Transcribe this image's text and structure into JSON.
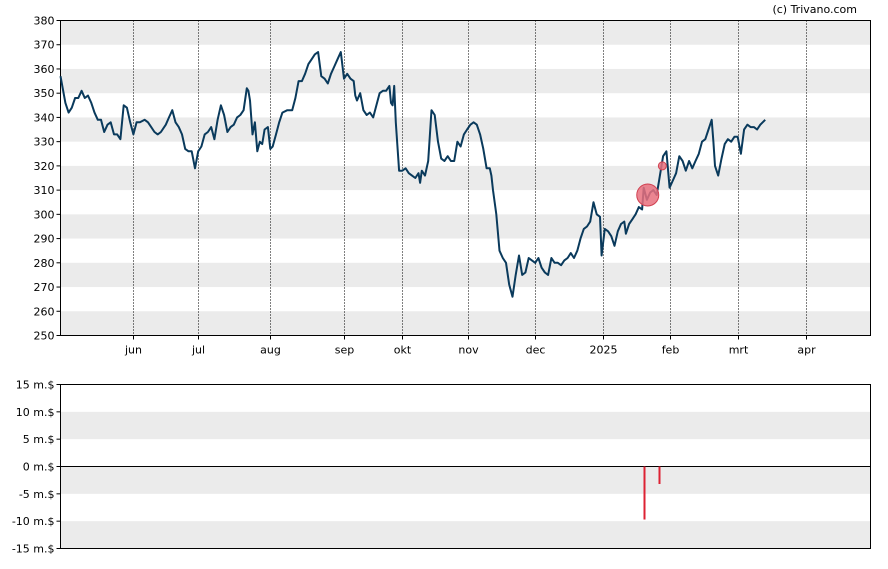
{
  "copyright": "(c) Trivano.com",
  "chart_data": [
    {
      "type": "line",
      "title": "",
      "xlabel": "",
      "ylabel": "",
      "ylim": [
        250,
        380
      ],
      "y_ticks": [
        250,
        260,
        270,
        280,
        290,
        300,
        310,
        320,
        330,
        340,
        350,
        360,
        370,
        380
      ],
      "y_tick_labels": [
        "250",
        "260",
        "270",
        "280",
        "290",
        "300",
        "310",
        "320",
        "330",
        "340",
        "350",
        "360",
        "370",
        "380"
      ],
      "x_range": [
        0,
        1
      ],
      "x_ticks": [
        {
          "label": "jun",
          "x": 0.0894
        },
        {
          "label": "jul",
          "x": 0.17
        },
        {
          "label": "aug",
          "x": 0.2584
        },
        {
          "label": "sep",
          "x": 0.3498
        },
        {
          "label": "okt",
          "x": 0.4217
        },
        {
          "label": "nov",
          "x": 0.5036
        },
        {
          "label": "dec",
          "x": 0.5856
        },
        {
          "label": "2025",
          "x": 0.67
        },
        {
          "label": "feb",
          "x": 0.7528
        },
        {
          "label": "mrt",
          "x": 0.836
        },
        {
          "label": "apr",
          "x": 0.9207
        }
      ],
      "grid": true,
      "series": [
        {
          "color": "#0a3a5c",
          "points": [
            [
              0.0,
              357
            ],
            [
              0.006,
              346
            ],
            [
              0.01,
              342
            ],
            [
              0.014,
              344
            ],
            [
              0.018,
              348
            ],
            [
              0.022,
              348
            ],
            [
              0.026,
              351
            ],
            [
              0.03,
              348
            ],
            [
              0.034,
              349
            ],
            [
              0.038,
              346
            ],
            [
              0.042,
              342
            ],
            [
              0.046,
              339
            ],
            [
              0.05,
              339
            ],
            [
              0.054,
              334
            ],
            [
              0.058,
              337
            ],
            [
              0.062,
              338
            ],
            [
              0.066,
              333
            ],
            [
              0.07,
              333
            ],
            [
              0.074,
              331
            ],
            [
              0.078,
              345
            ],
            [
              0.082,
              344
            ],
            [
              0.086,
              338
            ],
            [
              0.09,
              333
            ],
            [
              0.094,
              338
            ],
            [
              0.098,
              338
            ],
            [
              0.104,
              339
            ],
            [
              0.108,
              338
            ],
            [
              0.112,
              336
            ],
            [
              0.116,
              334
            ],
            [
              0.12,
              333
            ],
            [
              0.124,
              334
            ],
            [
              0.13,
              337
            ],
            [
              0.134,
              340
            ],
            [
              0.138,
              343
            ],
            [
              0.142,
              338
            ],
            [
              0.146,
              336
            ],
            [
              0.15,
              333
            ],
            [
              0.154,
              327
            ],
            [
              0.158,
              326
            ],
            [
              0.162,
              326
            ],
            [
              0.166,
              319
            ],
            [
              0.17,
              326
            ],
            [
              0.174,
              328
            ],
            [
              0.178,
              333
            ],
            [
              0.182,
              334
            ],
            [
              0.186,
              336
            ],
            [
              0.19,
              331
            ],
            [
              0.194,
              339
            ],
            [
              0.198,
              345
            ],
            [
              0.202,
              341
            ],
            [
              0.206,
              334
            ],
            [
              0.21,
              336
            ],
            [
              0.214,
              337
            ],
            [
              0.218,
              340
            ],
            [
              0.222,
              341
            ],
            [
              0.226,
              343
            ],
            [
              0.23,
              352
            ],
            [
              0.232,
              351
            ],
            [
              0.234,
              347
            ],
            [
              0.237,
              333
            ],
            [
              0.24,
              338
            ],
            [
              0.243,
              326
            ],
            [
              0.246,
              330
            ],
            [
              0.249,
              329
            ],
            [
              0.252,
              335
            ],
            [
              0.256,
              336
            ],
            [
              0.259,
              327
            ],
            [
              0.262,
              328
            ],
            [
              0.266,
              333
            ],
            [
              0.27,
              338
            ],
            [
              0.274,
              342
            ],
            [
              0.28,
              343
            ],
            [
              0.286,
              343
            ],
            [
              0.29,
              348
            ],
            [
              0.294,
              355
            ],
            [
              0.298,
              355
            ],
            [
              0.302,
              358
            ],
            [
              0.306,
              362
            ],
            [
              0.31,
              364
            ],
            [
              0.314,
              366
            ],
            [
              0.318,
              367
            ],
            [
              0.322,
              357
            ],
            [
              0.326,
              356
            ],
            [
              0.33,
              354
            ],
            [
              0.334,
              358
            ],
            [
              0.338,
              361
            ],
            [
              0.342,
              364
            ],
            [
              0.346,
              367
            ],
            [
              0.35,
              356
            ],
            [
              0.354,
              358
            ],
            [
              0.358,
              356
            ],
            [
              0.362,
              355
            ],
            [
              0.364,
              349
            ],
            [
              0.366,
              347
            ],
            [
              0.37,
              350
            ],
            [
              0.374,
              343
            ],
            [
              0.378,
              341
            ],
            [
              0.382,
              342
            ],
            [
              0.386,
              340
            ],
            [
              0.39,
              345
            ],
            [
              0.394,
              350
            ],
            [
              0.398,
              351
            ],
            [
              0.402,
              351
            ],
            [
              0.406,
              353
            ],
            [
              0.408,
              346
            ],
            [
              0.41,
              345
            ],
            [
              0.412,
              353
            ],
            [
              0.414,
              338
            ],
            [
              0.418,
              318
            ],
            [
              0.422,
              318
            ],
            [
              0.426,
              319
            ],
            [
              0.43,
              317
            ],
            [
              0.434,
              316
            ],
            [
              0.438,
              315
            ],
            [
              0.442,
              317
            ],
            [
              0.444,
              313
            ],
            [
              0.446,
              318
            ],
            [
              0.45,
              316
            ],
            [
              0.454,
              322
            ],
            [
              0.458,
              343
            ],
            [
              0.462,
              341
            ],
            [
              0.466,
              330
            ],
            [
              0.47,
              323
            ],
            [
              0.474,
              322
            ],
            [
              0.478,
              324
            ],
            [
              0.482,
              322
            ],
            [
              0.486,
              322
            ],
            [
              0.49,
              330
            ],
            [
              0.494,
              328
            ],
            [
              0.498,
              333
            ],
            [
              0.502,
              335
            ],
            [
              0.506,
              337
            ],
            [
              0.51,
              338
            ],
            [
              0.514,
              337
            ],
            [
              0.518,
              333
            ],
            [
              0.522,
              327
            ],
            [
              0.526,
              319
            ],
            [
              0.53,
              319
            ],
            [
              0.532,
              316
            ],
            [
              0.534,
              310
            ],
            [
              0.538,
              300
            ],
            [
              0.542,
              285
            ],
            [
              0.546,
              282
            ],
            [
              0.55,
              280
            ],
            [
              0.554,
              271
            ],
            [
              0.558,
              266
            ],
            [
              0.562,
              275
            ],
            [
              0.566,
              283
            ],
            [
              0.57,
              275
            ],
            [
              0.574,
              276
            ],
            [
              0.578,
              282
            ],
            [
              0.582,
              281
            ],
            [
              0.586,
              280
            ],
            [
              0.59,
              282
            ],
            [
              0.594,
              278
            ],
            [
              0.598,
              276
            ],
            [
              0.602,
              275
            ],
            [
              0.606,
              282
            ],
            [
              0.61,
              280
            ],
            [
              0.614,
              280
            ],
            [
              0.618,
              279
            ],
            [
              0.622,
              281
            ],
            [
              0.626,
              282
            ],
            [
              0.63,
              284
            ],
            [
              0.634,
              282
            ],
            [
              0.638,
              285
            ],
            [
              0.642,
              290
            ],
            [
              0.646,
              294
            ],
            [
              0.65,
              295
            ],
            [
              0.654,
              297
            ],
            [
              0.658,
              305
            ],
            [
              0.662,
              300
            ],
            [
              0.666,
              299
            ],
            [
              0.668,
              283
            ],
            [
              0.672,
              294
            ],
            [
              0.676,
              293
            ],
            [
              0.68,
              291
            ],
            [
              0.684,
              287
            ],
            [
              0.688,
              293
            ],
            [
              0.692,
              296
            ],
            [
              0.696,
              297
            ],
            [
              0.698,
              292
            ],
            [
              0.702,
              296
            ],
            [
              0.706,
              298
            ],
            [
              0.71,
              300
            ],
            [
              0.714,
              303
            ],
            [
              0.718,
              302
            ],
            [
              0.72,
              311
            ],
            [
              0.724,
              306
            ],
            [
              0.728,
              309
            ],
            [
              0.732,
              310
            ],
            [
              0.736,
              308
            ],
            [
              0.74,
              316
            ],
            [
              0.744,
              324
            ],
            [
              0.748,
              326
            ],
            [
              0.752,
              311
            ],
            [
              0.756,
              314
            ],
            [
              0.76,
              317
            ],
            [
              0.764,
              324
            ],
            [
              0.768,
              322
            ],
            [
              0.772,
              318
            ],
            [
              0.776,
              322
            ],
            [
              0.78,
              319
            ],
            [
              0.784,
              322
            ],
            [
              0.788,
              325
            ],
            [
              0.792,
              330
            ],
            [
              0.796,
              331
            ],
            [
              0.8,
              335
            ],
            [
              0.804,
              339
            ],
            [
              0.806,
              330
            ],
            [
              0.808,
              320
            ],
            [
              0.812,
              316
            ],
            [
              0.816,
              323
            ],
            [
              0.82,
              329
            ],
            [
              0.824,
              331
            ],
            [
              0.828,
              330
            ],
            [
              0.832,
              332
            ],
            [
              0.836,
              332
            ],
            [
              0.84,
              325
            ],
            [
              0.844,
              335
            ],
            [
              0.848,
              337
            ],
            [
              0.852,
              336
            ],
            [
              0.856,
              336
            ],
            [
              0.86,
              335
            ],
            [
              0.864,
              337
            ],
            [
              0.87,
              339
            ]
          ]
        }
      ],
      "markers": [
        {
          "x": 0.725,
          "y": 308,
          "size": "large",
          "color": "#e8707e"
        },
        {
          "x": 0.743,
          "y": 320,
          "size": "small",
          "color": "#e8707e"
        }
      ]
    },
    {
      "type": "bar",
      "title": "",
      "xlabel": "",
      "ylabel": "",
      "ylim": [
        -15,
        15
      ],
      "y_ticks": [
        -15,
        -10,
        -5,
        0,
        5,
        10,
        15
      ],
      "y_tick_labels": [
        "-15 m.$",
        "-10 m.$",
        "-5 m.$",
        "0 m.$",
        "5 m.$",
        "10 m.$",
        "15 m.$"
      ],
      "grid": true,
      "bars": [
        {
          "x": 0.72,
          "value": -9.7,
          "color": "#dd2233"
        },
        {
          "x": 0.7389,
          "value": -3.2,
          "color": "#dd2233"
        }
      ]
    }
  ]
}
